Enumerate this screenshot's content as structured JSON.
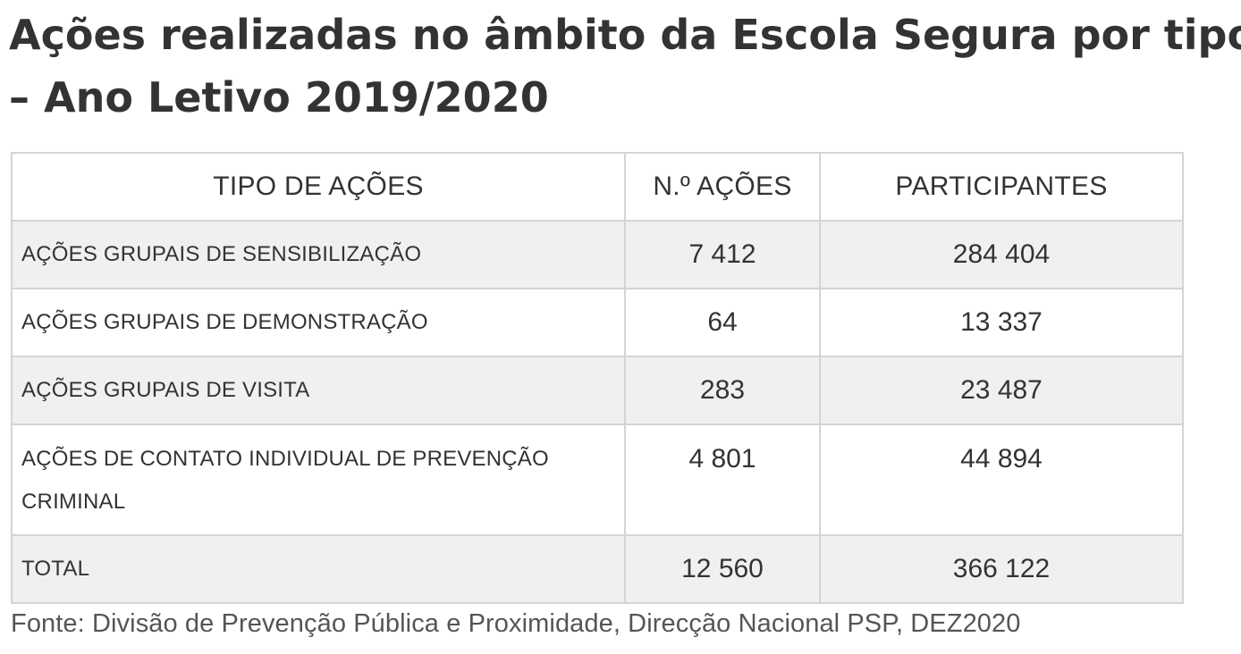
{
  "title": {
    "line1": "Ações realizadas no âmbito da Escola Segura por tipo",
    "line2": "– Ano Letivo 2019/2020"
  },
  "table": {
    "headers": [
      "TIPO DE AÇÕES",
      "N.º AÇÕES",
      "PARTICIPANTES"
    ],
    "rows": [
      {
        "tipo": "AÇÕES GRUPAIS DE SENSIBILIZAÇÃO",
        "acoes": "7 412",
        "participantes": "284 404"
      },
      {
        "tipo": "AÇÕES GRUPAIS DE DEMONSTRAÇÃO",
        "acoes": "64",
        "participantes": "13 337"
      },
      {
        "tipo": "AÇÕES GRUPAIS DE VISITA",
        "acoes": "283",
        "participantes": "23 487"
      },
      {
        "tipo": "AÇÕES DE CONTATO INDIVIDUAL DE PREVENÇÃO CRIMINAL",
        "acoes": "4 801",
        "participantes": "44 894"
      },
      {
        "tipo": "TOTAL",
        "acoes": "12 560",
        "participantes": "366 122"
      }
    ]
  },
  "source": "Fonte: Divisão de Prevenção Pública e Proximidade, Direcção Nacional PSP, DEZ2020"
}
